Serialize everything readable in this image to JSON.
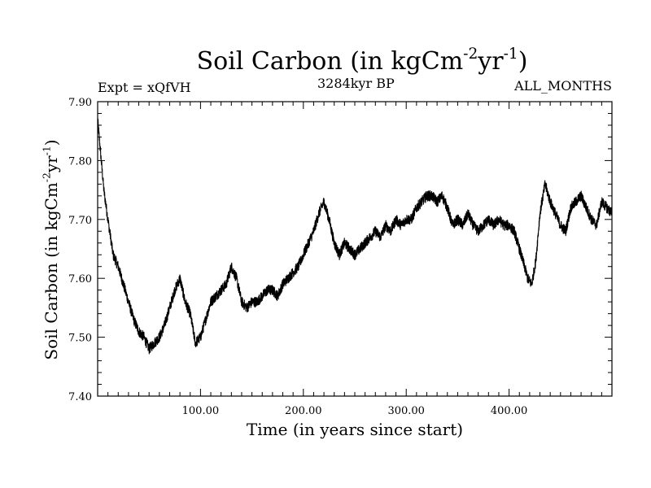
{
  "chart_data": {
    "type": "line",
    "title": {
      "main": "Soil Carbon (in kgCm",
      "exp1": "-2",
      "mid": "yr",
      "exp2": "-1",
      "end": ")"
    },
    "subtitle_left": "Expt = xQfVH",
    "subtitle_center": "3284kyr BP",
    "subtitle_right": "ALL_MONTHS",
    "xlabel": "Time (in years since start)",
    "ylabel": {
      "main": "Soil Carbon (in kgCm",
      "exp1": "-2",
      "mid": "yr",
      "exp2": "-1",
      "end": ")"
    },
    "xlim": [
      0,
      500
    ],
    "ylim": [
      7.4,
      7.9
    ],
    "x_ticks": [
      100,
      200,
      300,
      400
    ],
    "x_tick_labels": [
      "100.00",
      "200.00",
      "300.00",
      "400.00"
    ],
    "y_ticks": [
      7.4,
      7.5,
      7.6,
      7.7,
      7.8,
      7.9
    ],
    "y_tick_labels": [
      "7.40",
      "7.50",
      "7.60",
      "7.70",
      "7.80",
      "7.90"
    ],
    "series": [
      {
        "name": "Soil Carbon",
        "color": "#000000",
        "x": [
          0,
          3,
          6,
          10,
          15,
          20,
          25,
          30,
          35,
          40,
          45,
          50,
          55,
          60,
          65,
          70,
          75,
          80,
          85,
          90,
          95,
          100,
          105,
          110,
          115,
          120,
          125,
          130,
          135,
          140,
          145,
          150,
          155,
          160,
          165,
          170,
          175,
          180,
          185,
          190,
          195,
          200,
          205,
          210,
          215,
          220,
          225,
          230,
          235,
          240,
          245,
          250,
          255,
          260,
          265,
          270,
          275,
          280,
          285,
          290,
          295,
          300,
          305,
          310,
          315,
          320,
          325,
          330,
          335,
          340,
          345,
          350,
          355,
          360,
          365,
          370,
          375,
          380,
          385,
          390,
          395,
          400,
          405,
          410,
          415,
          418,
          422,
          426,
          430,
          435,
          440,
          445,
          450,
          455,
          460,
          465,
          470,
          475,
          480,
          485,
          490,
          495,
          500
        ],
        "values": [
          7.87,
          7.81,
          7.75,
          7.7,
          7.64,
          7.62,
          7.59,
          7.56,
          7.53,
          7.51,
          7.5,
          7.48,
          7.49,
          7.5,
          7.52,
          7.55,
          7.58,
          7.6,
          7.56,
          7.54,
          7.49,
          7.5,
          7.53,
          7.56,
          7.57,
          7.58,
          7.59,
          7.62,
          7.6,
          7.56,
          7.55,
          7.56,
          7.56,
          7.57,
          7.58,
          7.58,
          7.57,
          7.59,
          7.6,
          7.61,
          7.62,
          7.64,
          7.66,
          7.68,
          7.71,
          7.73,
          7.7,
          7.66,
          7.64,
          7.66,
          7.65,
          7.64,
          7.65,
          7.66,
          7.67,
          7.68,
          7.67,
          7.69,
          7.68,
          7.7,
          7.69,
          7.7,
          7.7,
          7.72,
          7.73,
          7.74,
          7.74,
          7.73,
          7.74,
          7.72,
          7.69,
          7.7,
          7.69,
          7.71,
          7.69,
          7.68,
          7.69,
          7.7,
          7.69,
          7.7,
          7.69,
          7.69,
          7.68,
          7.65,
          7.62,
          7.6,
          7.59,
          7.63,
          7.71,
          7.76,
          7.73,
          7.71,
          7.69,
          7.68,
          7.72,
          7.73,
          7.74,
          7.72,
          7.7,
          7.69,
          7.73,
          7.72,
          7.71
        ]
      }
    ]
  }
}
